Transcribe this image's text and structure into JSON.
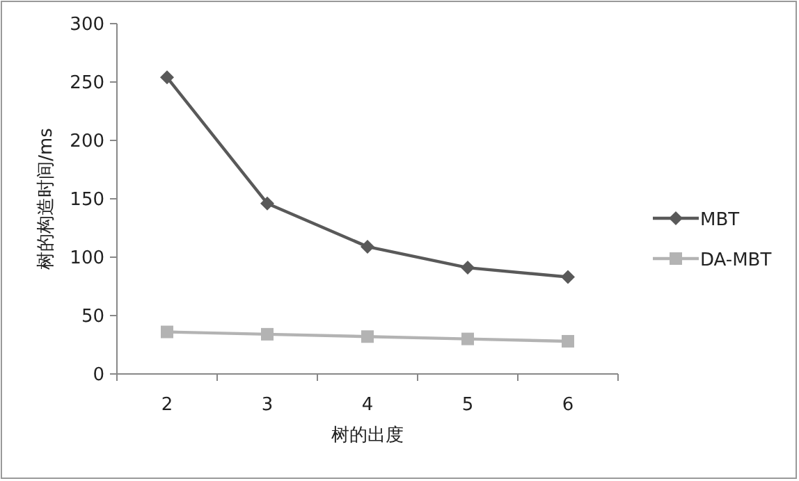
{
  "chart_data": {
    "type": "line",
    "xlabel": "树的出度",
    "ylabel": "树的构造时间/ms",
    "categories": [
      "2",
      "3",
      "4",
      "5",
      "6"
    ],
    "series": [
      {
        "name": "MBT",
        "color": "#595959",
        "marker": "diamond",
        "values": [
          254,
          146,
          109,
          91,
          83
        ]
      },
      {
        "name": "DA-MBT",
        "color": "#b3b3b3",
        "marker": "square",
        "values": [
          36,
          34,
          32,
          30,
          28
        ]
      }
    ],
    "ylim": [
      0,
      300
    ],
    "yticks": [
      0,
      50,
      100,
      150,
      200,
      250,
      300
    ],
    "legend": "right",
    "grid": false
  }
}
